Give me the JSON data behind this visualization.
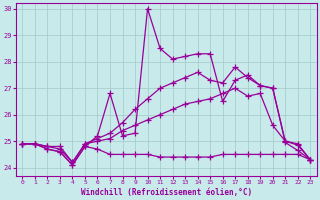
{
  "xlabel": "Windchill (Refroidissement éolien,°C)",
  "xlim": [
    -0.5,
    23.5
  ],
  "ylim": [
    23.7,
    30.2
  ],
  "yticks": [
    24,
    25,
    26,
    27,
    28,
    29,
    30
  ],
  "xticks": [
    0,
    1,
    2,
    3,
    4,
    5,
    6,
    7,
    8,
    9,
    10,
    11,
    12,
    13,
    14,
    15,
    16,
    17,
    18,
    19,
    20,
    21,
    22,
    23
  ],
  "background_color": "#c8eaea",
  "grid_color": "#a0c8c8",
  "line_color": "#990099",
  "line1": [
    24.9,
    24.9,
    24.7,
    24.6,
    24.1,
    24.8,
    24.7,
    24.5,
    24.5,
    24.5,
    24.5,
    24.4,
    24.4,
    24.4,
    24.4,
    24.4,
    24.5,
    24.5,
    24.5,
    24.5,
    24.5,
    24.5,
    24.5,
    24.3
  ],
  "line2": [
    24.9,
    24.9,
    24.8,
    24.8,
    24.2,
    24.9,
    25.0,
    25.1,
    25.4,
    25.6,
    25.8,
    26.0,
    26.2,
    26.4,
    26.5,
    26.6,
    26.8,
    27.0,
    26.7,
    26.8,
    25.6,
    25.0,
    24.9,
    24.3
  ],
  "line3": [
    24.9,
    24.9,
    24.8,
    24.7,
    24.2,
    24.9,
    25.1,
    25.3,
    25.7,
    26.2,
    26.6,
    27.0,
    27.2,
    27.4,
    27.6,
    27.3,
    27.2,
    27.8,
    27.4,
    27.1,
    27.0,
    25.0,
    24.85,
    24.3
  ],
  "line4": [
    24.9,
    24.9,
    24.7,
    24.6,
    24.1,
    24.8,
    25.2,
    26.8,
    25.2,
    25.3,
    30.0,
    28.5,
    28.1,
    28.2,
    28.3,
    28.3,
    26.5,
    27.3,
    27.5,
    27.1,
    27.0,
    24.95,
    24.65,
    24.3
  ]
}
